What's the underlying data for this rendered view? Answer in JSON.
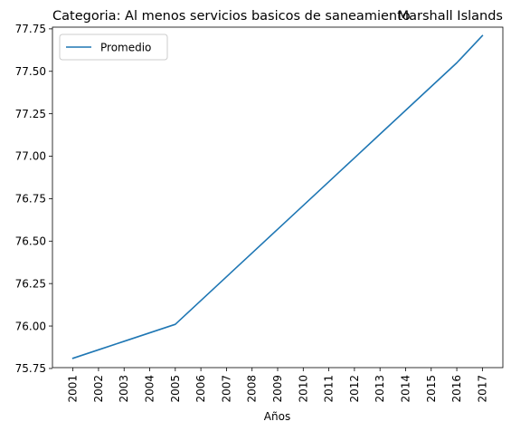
{
  "chart_data": {
    "type": "line",
    "title_left": "Categoria: Al menos servicios basicos de saneamiento",
    "title_right": "Marshall Islands",
    "xlabel": "Años",
    "ylabel": "",
    "categories": [
      "2001",
      "2002",
      "2003",
      "2004",
      "2005",
      "2006",
      "2007",
      "2008",
      "2009",
      "2010",
      "2011",
      "2012",
      "2013",
      "2014",
      "2015",
      "2016",
      "2017"
    ],
    "series": [
      {
        "name": "Promedio",
        "color": "#1f77b4",
        "values": [
          75.81,
          75.86,
          75.91,
          75.96,
          76.01,
          76.15,
          76.29,
          76.43,
          76.57,
          76.71,
          76.85,
          76.99,
          77.13,
          77.27,
          77.41,
          77.55,
          77.71
        ]
      }
    ],
    "ylim": [
      75.755,
      77.76
    ],
    "yticks": [
      "75.75",
      "76.00",
      "76.25",
      "76.50",
      "76.75",
      "77.00",
      "77.25",
      "77.50",
      "77.75"
    ],
    "legend_position": "top-left",
    "grid": false
  }
}
